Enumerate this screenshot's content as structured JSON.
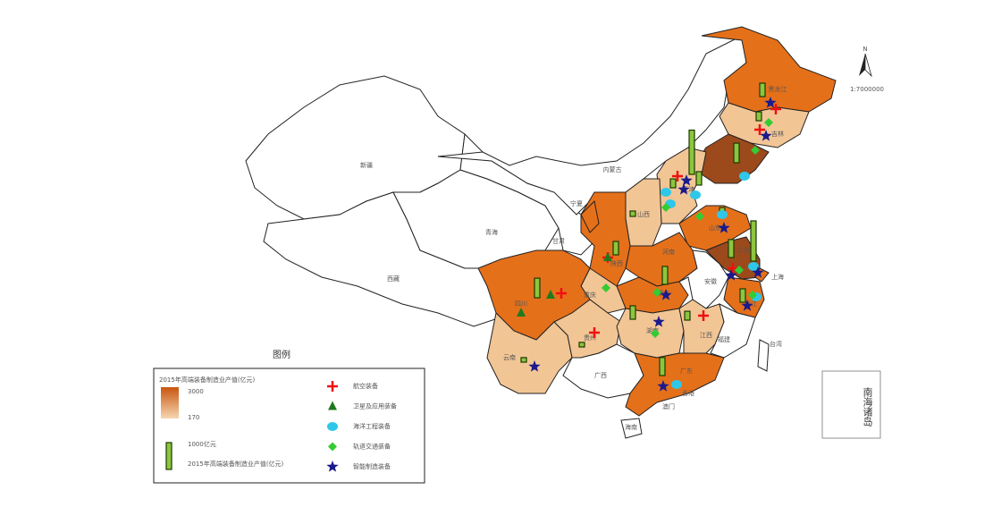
{
  "map": {
    "labels": [
      "黑龙江",
      "吉林",
      "内蒙古",
      "新疆",
      "青海",
      "西藏",
      "甘肃",
      "四川",
      "云南",
      "广西",
      "广东",
      "香港",
      "澳门",
      "福建",
      "浙江",
      "上海",
      "江苏",
      "安徽",
      "湖北",
      "湖南",
      "贵州",
      "重庆",
      "陕西",
      "山西",
      "天津",
      "山东",
      "河南",
      "江西",
      "宁夏",
      "台湾",
      "海南"
    ],
    "bars": [
      {
        "region": "黑龙江",
        "value": 500
      },
      {
        "region": "吉林",
        "value": 330
      },
      {
        "region": "辽宁",
        "value": 730
      },
      {
        "region": "北京",
        "value": 1650
      },
      {
        "region": "河北",
        "value": 500
      },
      {
        "region": "天津",
        "value": 330
      },
      {
        "region": "山西",
        "value": 200
      },
      {
        "region": "山东",
        "value": 330
      },
      {
        "region": "江苏",
        "value": 1500
      },
      {
        "region": "安徽",
        "value": 670
      },
      {
        "region": "河南",
        "value": 670
      },
      {
        "region": "陕西",
        "value": 500
      },
      {
        "region": "四川",
        "value": 730
      },
      {
        "region": "湖北",
        "value": 500
      },
      {
        "region": "浙江",
        "value": 500
      },
      {
        "region": "贵州",
        "value": 170
      },
      {
        "region": "广东",
        "value": 670
      },
      {
        "region": "云南",
        "value": 170
      },
      {
        "region": "湖南",
        "value": 330
      }
    ],
    "north": "N",
    "scale": "1:7000000",
    "inset": "南海诸岛"
  },
  "legend": {
    "title": "图例",
    "gradient_caption": "2015年高端装备制造业产值(亿元)",
    "gradient_max": "3000",
    "gradient_min": "170",
    "bar_label": "1000亿元",
    "bar_value": 1000,
    "bar_caption": "2015年高端装备制造业产值(亿元)",
    "symbols": [
      "航空装备",
      "卫星及应用装备",
      "海洋工程装备",
      "轨道交通装备",
      "智能制造装备"
    ]
  }
}
